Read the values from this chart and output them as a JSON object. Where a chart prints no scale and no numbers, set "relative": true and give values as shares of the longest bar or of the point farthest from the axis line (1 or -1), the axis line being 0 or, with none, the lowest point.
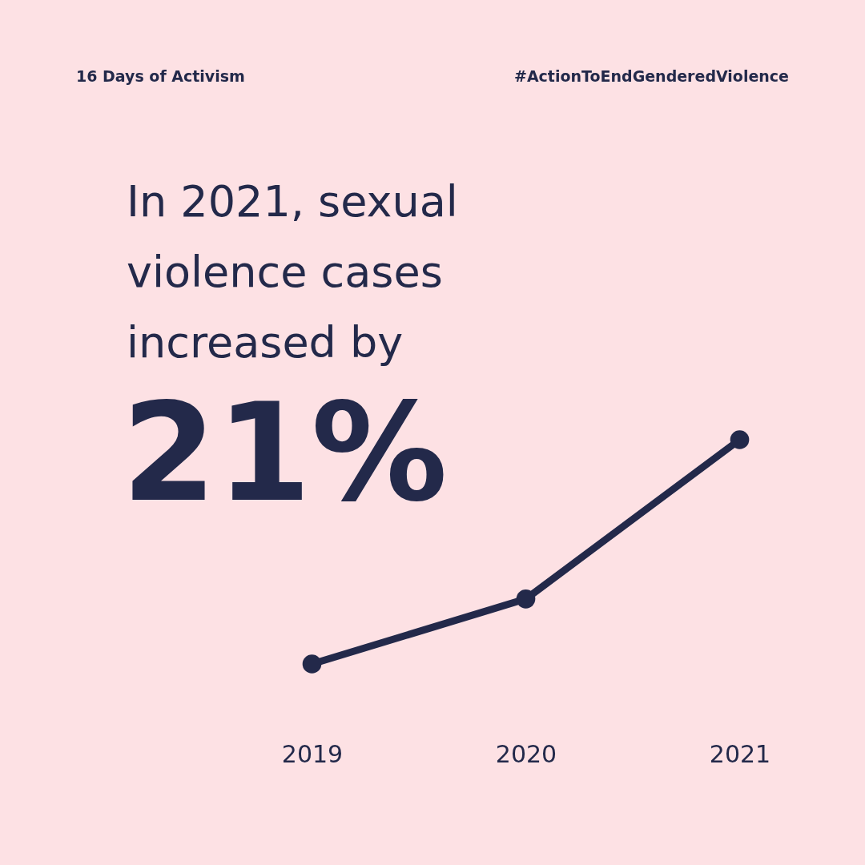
{
  "chart_data": {
    "type": "line",
    "title": "In 2021, sexual violence cases increased by",
    "subtitle": "21%",
    "annotations": [
      "16 Days of Activism",
      "#ActionToEndGenderedViolence"
    ],
    "categories": [
      "2019",
      "2020",
      "2021"
    ],
    "relative": true,
    "marker": "circle",
    "series": [
      {
        "color": "#23294a",
        "values": [
          0,
          0.29,
          1
        ]
      }
    ]
  }
}
